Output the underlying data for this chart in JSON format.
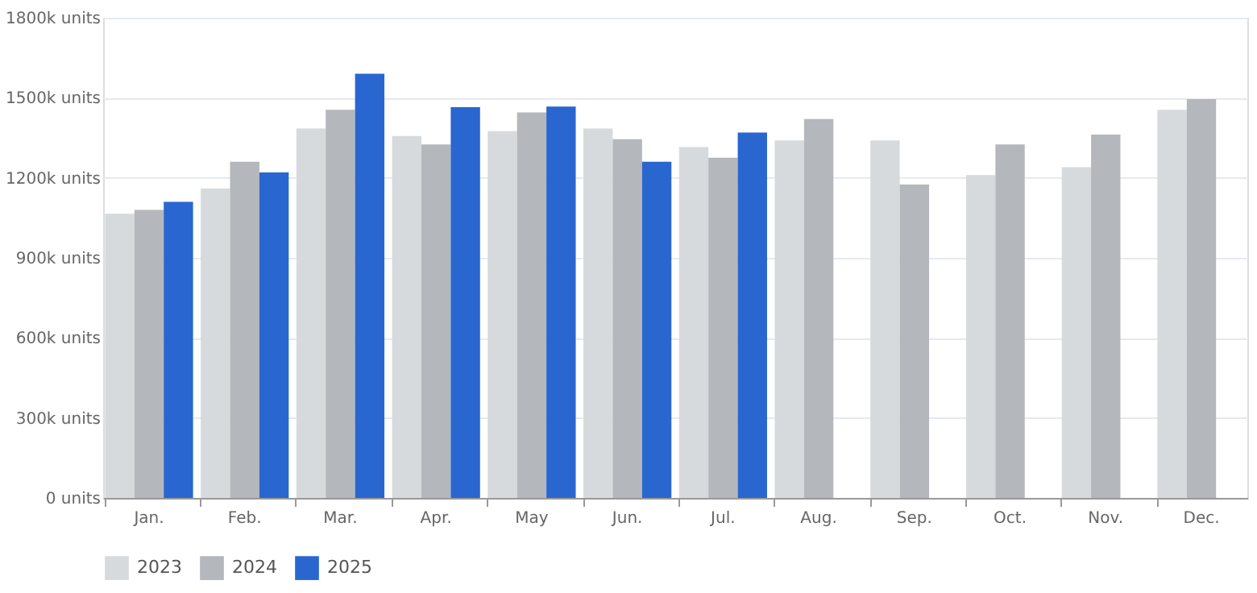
{
  "chart_data": {
    "type": "bar",
    "categories": [
      "Jan.",
      "Feb.",
      "Mar.",
      "Apr.",
      "May",
      "Jun.",
      "Jul.",
      "Aug.",
      "Sep.",
      "Oct.",
      "Nov.",
      "Dec."
    ],
    "series": [
      {
        "name": "2023",
        "color": "#d7dadd",
        "values": [
          1065,
          1160,
          1385,
          1357,
          1375,
          1385,
          1315,
          1340,
          1340,
          1210,
          1240,
          1455
        ]
      },
      {
        "name": "2024",
        "color": "#b4b7bb",
        "values": [
          1080,
          1260,
          1455,
          1325,
          1445,
          1345,
          1275,
          1420,
          1175,
          1325,
          1362,
          1495
        ]
      },
      {
        "name": "2025",
        "color": "#2a66cf",
        "values": [
          1110,
          1220,
          1590,
          1465,
          1467,
          1260,
          1370,
          null,
          null,
          null,
          null,
          null
        ]
      }
    ],
    "ylim": [
      0,
      1800
    ],
    "yticks": [
      {
        "value": 0,
        "label": "0 units"
      },
      {
        "value": 300,
        "label": "300k units"
      },
      {
        "value": 600,
        "label": "600k units"
      },
      {
        "value": 900,
        "label": "900k units"
      },
      {
        "value": 1200,
        "label": "1200k units"
      },
      {
        "value": 1500,
        "label": "1500k units"
      },
      {
        "value": 1800,
        "label": "1800k units"
      }
    ],
    "grid": "y",
    "legend": "bottom"
  }
}
